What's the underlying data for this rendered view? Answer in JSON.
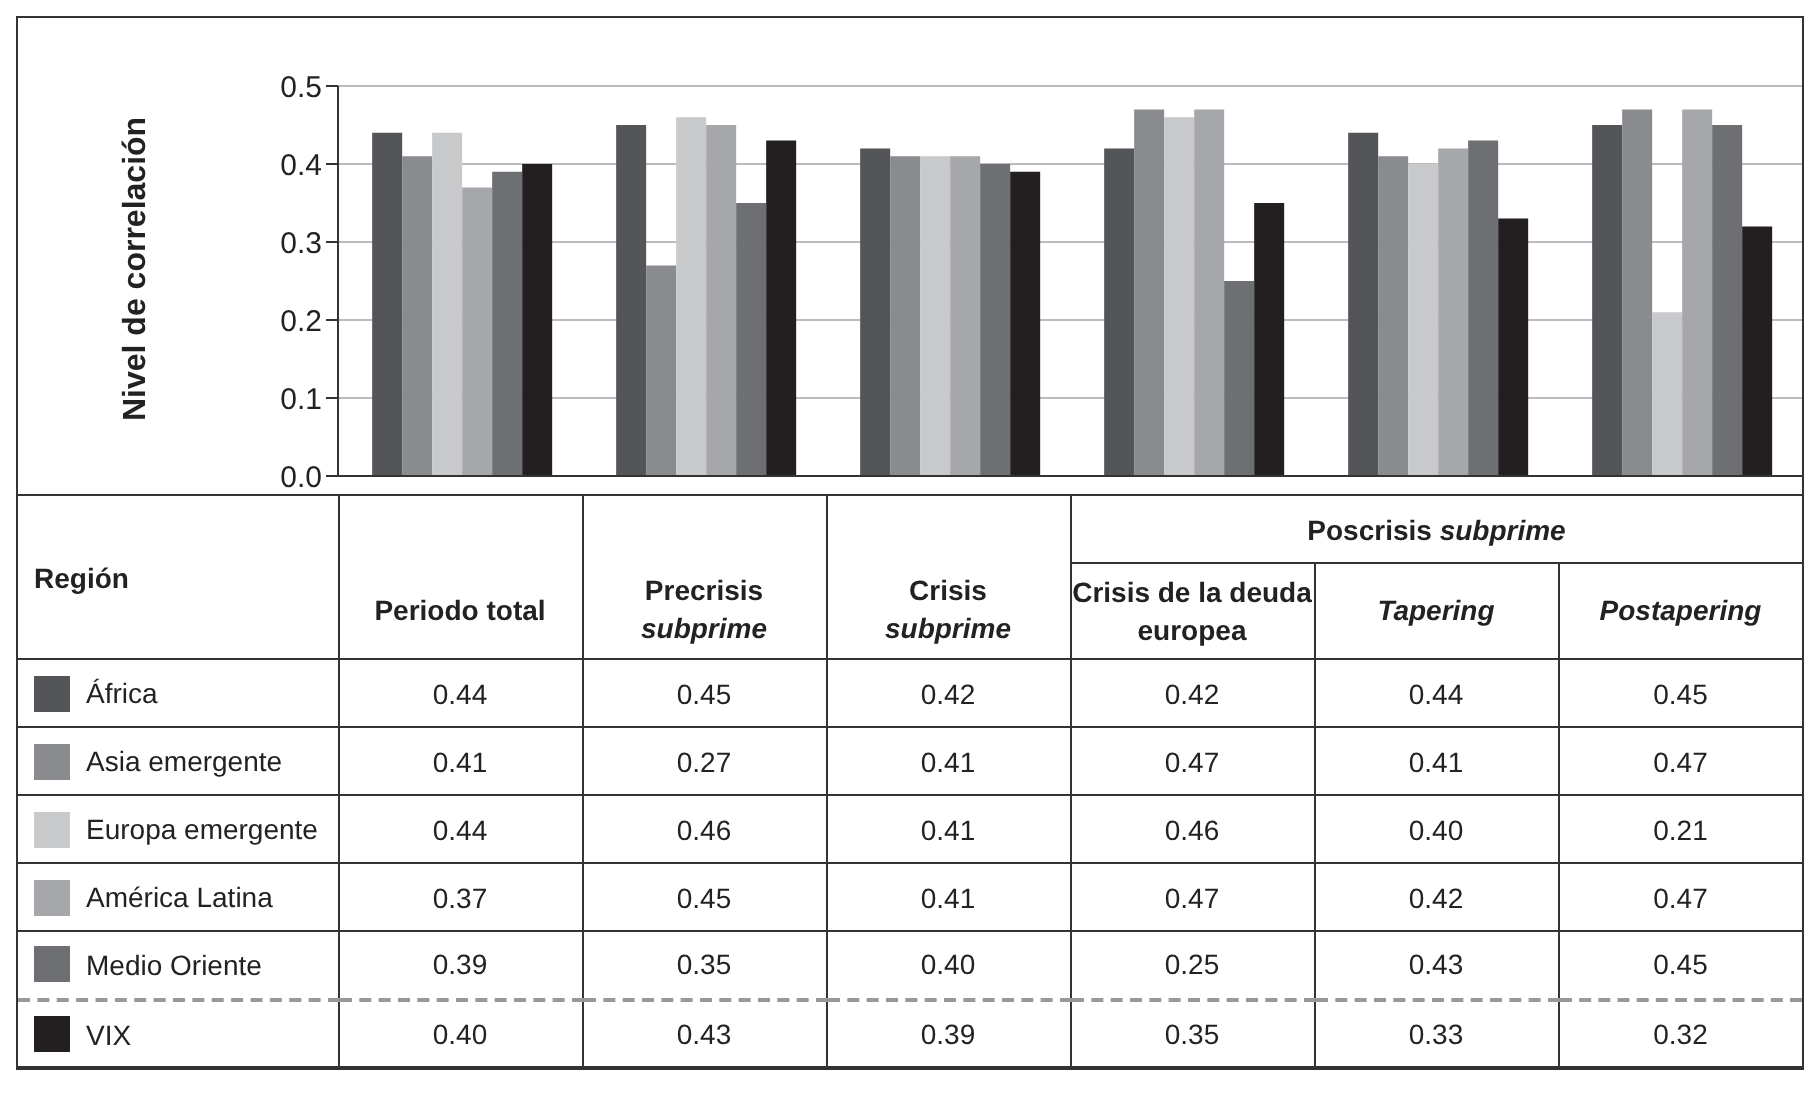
{
  "chart_data": {
    "type": "bar",
    "ylabel": "Nivel de correlación",
    "legend_title": "Región",
    "categories": [
      "Periodo total",
      "Precrisis subprime",
      "Crisis subprime",
      "Crisis de la deuda europea",
      "Tapering",
      "Postapering"
    ],
    "series": [
      {
        "name": "África",
        "color": "#545558",
        "values": [
          0.44,
          0.45,
          0.42,
          0.42,
          0.44,
          0.45
        ],
        "value_labels": [
          "0.44",
          "0.45",
          "0.42",
          "0.42",
          "0.44",
          "0.45"
        ]
      },
      {
        "name": "Asia emergente",
        "color": "#8a8b8f",
        "values": [
          0.41,
          0.27,
          0.41,
          0.47,
          0.41,
          0.47
        ],
        "value_labels": [
          "0.41",
          "0.27",
          "0.41",
          "0.47",
          "0.41",
          "0.47"
        ]
      },
      {
        "name": "Europa emergente",
        "color": "#c8c9cb",
        "values": [
          0.44,
          0.46,
          0.41,
          0.46,
          0.4,
          0.21
        ],
        "value_labels": [
          "0.44",
          "0.46",
          "0.41",
          "0.46",
          "0.40",
          "0.21"
        ]
      },
      {
        "name": "América Latina",
        "color": "#a6a7aa",
        "values": [
          0.37,
          0.45,
          0.41,
          0.47,
          0.42,
          0.47
        ],
        "value_labels": [
          "0.37",
          "0.45",
          "0.41",
          "0.47",
          "0.42",
          "0.47"
        ]
      },
      {
        "name": "Medio Oriente",
        "color": "#6e6f73",
        "values": [
          0.39,
          0.35,
          0.4,
          0.25,
          0.43,
          0.45
        ],
        "value_labels": [
          "0.39",
          "0.35",
          "0.40",
          "0.25",
          "0.43",
          "0.45"
        ]
      },
      {
        "name": "VIX",
        "color": "#231f20",
        "values": [
          0.4,
          0.43,
          0.39,
          0.35,
          0.33,
          0.32
        ],
        "value_labels": [
          "0.40",
          "0.43",
          "0.39",
          "0.35",
          "0.33",
          "0.32"
        ]
      }
    ],
    "ylim": [
      0,
      0.5
    ],
    "yticks": [
      {
        "value": 0,
        "label": "0.0"
      },
      0.1,
      0.2,
      0.3,
      0.4,
      0.5
    ],
    "grid": "y",
    "legend": "bottom",
    "tick_labels": "y",
    "annotations": [
      "Poscrisis subprime"
    ]
  }
}
